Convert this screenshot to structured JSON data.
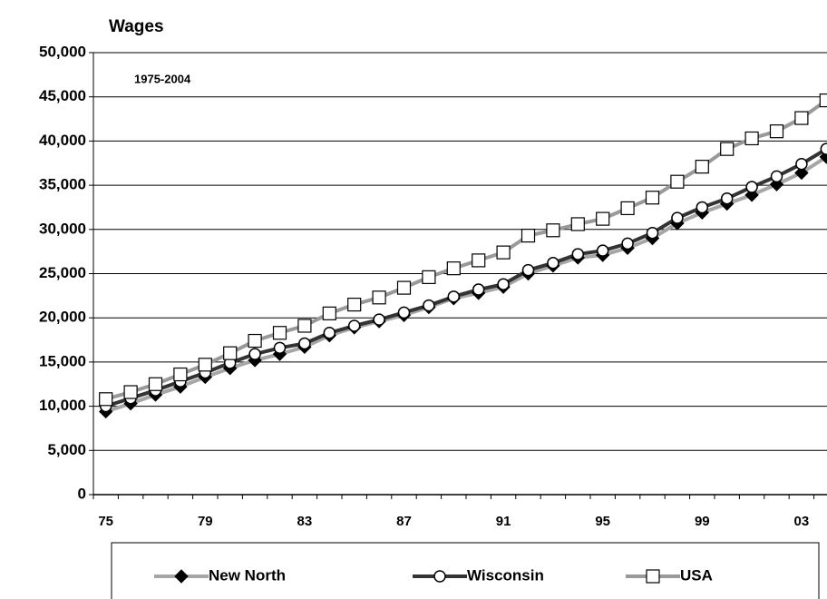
{
  "chart_data": {
    "type": "line",
    "title": "Wages",
    "subtitle": "1975-2004",
    "categories": [
      "75",
      null,
      null,
      null,
      "79",
      null,
      null,
      null,
      "83",
      null,
      null,
      null,
      "87",
      null,
      null,
      null,
      "91",
      null,
      null,
      null,
      "95",
      null,
      null,
      null,
      "99",
      null,
      null,
      null,
      "03",
      null
    ],
    "series": [
      {
        "name": "New North",
        "color": "#a6a6a6",
        "marker": "diamond",
        "marker_fill": "#000000",
        "values": [
          9400,
          10300,
          11300,
          12200,
          13300,
          14300,
          15200,
          15900,
          16700,
          18000,
          18900,
          19600,
          20300,
          21200,
          22200,
          22800,
          23500,
          25000,
          25900,
          26800,
          27100,
          27900,
          29000,
          30700,
          31900,
          32900,
          33900,
          35100,
          36400,
          38200
        ]
      },
      {
        "name": "Wisconsin",
        "color": "#333333",
        "marker": "circle",
        "marker_fill": "#ffffff",
        "values": [
          10000,
          10900,
          11800,
          12800,
          13800,
          14900,
          15900,
          16600,
          17100,
          18300,
          19100,
          19800,
          20600,
          21400,
          22400,
          23200,
          23800,
          25400,
          26200,
          27200,
          27600,
          28400,
          29600,
          31300,
          32500,
          33500,
          34800,
          36000,
          37400,
          39100
        ]
      },
      {
        "name": "USA",
        "color": "#999999",
        "marker": "square",
        "marker_fill": "#ffffff",
        "values": [
          10800,
          11600,
          12500,
          13600,
          14700,
          16000,
          17400,
          18300,
          19100,
          20500,
          21500,
          22300,
          23400,
          24600,
          25600,
          26500,
          27400,
          29300,
          29900,
          30600,
          31200,
          32400,
          33600,
          35400,
          37100,
          39100,
          40300,
          41100,
          42600,
          44600
        ]
      }
    ],
    "ylim": [
      0,
      50000
    ],
    "yticks": [
      0,
      {
        "value": 5000,
        "label": "5,000"
      },
      {
        "value": 10000,
        "label": "10,000"
      },
      {
        "value": 15000,
        "label": "15,000"
      },
      {
        "value": 20000,
        "label": "20,000"
      },
      {
        "value": 25000,
        "label": "25,000"
      },
      {
        "value": 30000,
        "label": "30,000"
      },
      {
        "value": 35000,
        "label": "35,000"
      },
      {
        "value": 40000,
        "label": "40,000"
      },
      {
        "value": 45000,
        "label": "45,000"
      },
      {
        "value": 50000,
        "label": "50,000"
      }
    ],
    "grid": true,
    "legend": "bottom"
  }
}
